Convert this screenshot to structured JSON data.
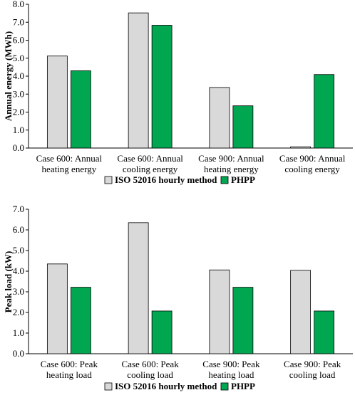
{
  "colors": {
    "iso": "#d9d9d9",
    "phpp": "#00a650",
    "bar_stroke": "#000000",
    "axis": "#000000"
  },
  "chart_data": [
    {
      "type": "bar",
      "ylabel": "Annual energy (MWh)",
      "ylim": [
        0,
        8.0
      ],
      "yticks": [
        "0.0",
        "1.0",
        "2.0",
        "3.0",
        "4.0",
        "5.0",
        "6.0",
        "7.0",
        "8.0"
      ],
      "grid": false,
      "legend_position": "bottom",
      "categories": [
        [
          "Case 600: Annual",
          "heating energy"
        ],
        [
          "Case 600: Annual",
          "cooling energy"
        ],
        [
          "Case 900: Annual",
          "heating energy"
        ],
        [
          "Case 900: Annual",
          "cooling energy"
        ]
      ],
      "series": [
        {
          "name": "ISO 52016 hourly method",
          "values": [
            5.12,
            7.52,
            3.37,
            0.07
          ]
        },
        {
          "name": "PHPP",
          "values": [
            4.3,
            6.83,
            2.35,
            4.09
          ]
        }
      ]
    },
    {
      "type": "bar",
      "ylabel": "Peak load (kW)",
      "ylim": [
        0,
        7.0
      ],
      "yticks": [
        "0.0",
        "1.0",
        "2.0",
        "3.0",
        "4.0",
        "5.0",
        "6.0",
        "7.0"
      ],
      "grid": false,
      "legend_position": "bottom",
      "categories": [
        [
          "Case 600: Peak",
          "heating load"
        ],
        [
          "Case 600: Peak",
          "cooling load"
        ],
        [
          "Case 900: Peak",
          "heating load"
        ],
        [
          "Case 900: Peak",
          "cooling load"
        ]
      ],
      "series": [
        {
          "name": "ISO 52016 hourly method",
          "values": [
            4.35,
            6.35,
            4.06,
            4.04
          ]
        },
        {
          "name": "PHPP",
          "values": [
            3.22,
            2.07,
            3.22,
            2.07
          ]
        }
      ]
    }
  ]
}
